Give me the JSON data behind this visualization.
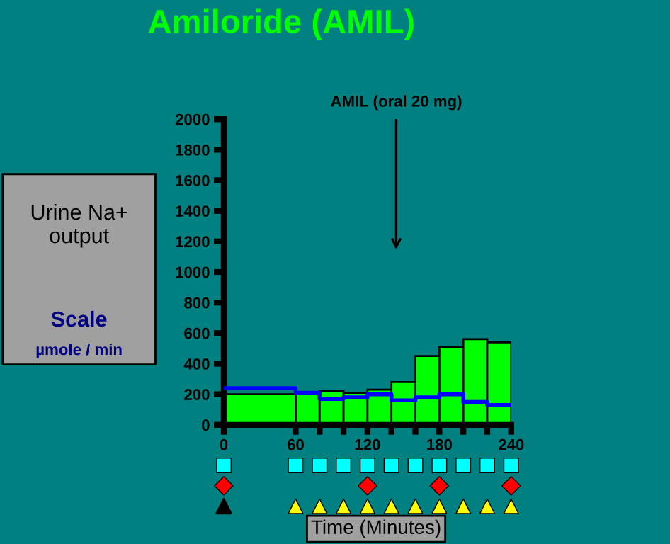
{
  "chart_data": [
    {
      "type": "histogram",
      "title": "Amiloride (AMIL)",
      "xlabel": "Time (Minutes)",
      "ylabel": "Urine Na+ output",
      "annotations": [
        "AMIL (oral 20 mg)",
        "Scale",
        "µmole / min"
      ],
      "bins": [
        0,
        60,
        80,
        100,
        120,
        140,
        160,
        180,
        200,
        220,
        240
      ],
      "series": [
        {
          "color": "#00ff00",
          "values": [
            200,
            210,
            220,
            210,
            230,
            280,
            450,
            510,
            560,
            540
          ]
        },
        {
          "type": "step",
          "color": "#0000ff",
          "x": [
            0,
            60,
            80,
            100,
            120,
            140,
            160,
            180,
            200,
            220,
            240
          ],
          "values": [
            240,
            210,
            170,
            180,
            200,
            160,
            180,
            200,
            150,
            130,
            130
          ]
        }
      ],
      "xlim": [
        0,
        240
      ],
      "ylim": [
        0,
        2000
      ],
      "xticks": [
        0,
        60,
        {
          "value": 80,
          "label": null
        },
        {
          "value": 100,
          "label": null
        },
        120,
        {
          "value": 140,
          "label": null
        },
        {
          "value": 160,
          "label": null
        },
        180,
        {
          "value": 200,
          "label": null
        },
        {
          "value": 220,
          "label": null
        },
        240
      ],
      "yticks": [
        0,
        200,
        400,
        600,
        800,
        1000,
        1200,
        1400,
        1600,
        1800,
        2000
      ],
      "grid": false,
      "legend": false
    }
  ]
}
